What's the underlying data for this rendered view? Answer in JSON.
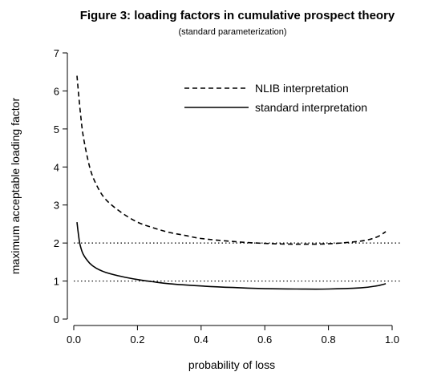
{
  "chart_data": {
    "type": "line",
    "title": "Figure 3:  loading factors in cumulative prospect theory",
    "subtitle": "(standard parameterization)",
    "xlabel": "probability of loss",
    "ylabel": "maximum acceptable loading factor",
    "xlim": [
      0,
      1
    ],
    "ylim": [
      0,
      7
    ],
    "xticks": [
      0,
      0.2,
      0.4,
      0.6,
      0.8,
      1
    ],
    "xtick_labels": [
      "0.0",
      "0.2",
      "0.4",
      "0.6",
      "0.8",
      "1.0"
    ],
    "yticks": [
      0,
      1,
      2,
      3,
      4,
      5,
      6,
      7
    ],
    "ytick_labels": [
      "0",
      "1",
      "2",
      "3",
      "4",
      "5",
      "6",
      "7"
    ],
    "grid": false,
    "legend_position": "top-right",
    "reference_lines": [
      {
        "y": 2,
        "style": "dotted"
      },
      {
        "y": 1,
        "style": "dotted"
      }
    ],
    "series": [
      {
        "name": "NLIB interpretation",
        "style": "dashed",
        "color": "#000000",
        "x": [
          0.01,
          0.02,
          0.03,
          0.05,
          0.07,
          0.1,
          0.15,
          0.2,
          0.25,
          0.3,
          0.35,
          0.4,
          0.5,
          0.6,
          0.7,
          0.8,
          0.9,
          0.95,
          0.98
        ],
        "y": [
          6.4,
          5.5,
          4.8,
          4.0,
          3.55,
          3.15,
          2.8,
          2.55,
          2.4,
          2.28,
          2.2,
          2.12,
          2.04,
          1.99,
          1.97,
          1.98,
          2.05,
          2.15,
          2.3
        ]
      },
      {
        "name": "standard interpretation",
        "style": "solid",
        "color": "#000000",
        "x": [
          0.01,
          0.015,
          0.02,
          0.03,
          0.05,
          0.07,
          0.1,
          0.15,
          0.2,
          0.25,
          0.3,
          0.4,
          0.5,
          0.6,
          0.7,
          0.8,
          0.9,
          0.95,
          0.98
        ],
        "y": [
          2.55,
          2.2,
          1.95,
          1.7,
          1.47,
          1.34,
          1.23,
          1.12,
          1.04,
          0.98,
          0.93,
          0.87,
          0.83,
          0.8,
          0.79,
          0.79,
          0.82,
          0.87,
          0.93
        ]
      }
    ]
  }
}
